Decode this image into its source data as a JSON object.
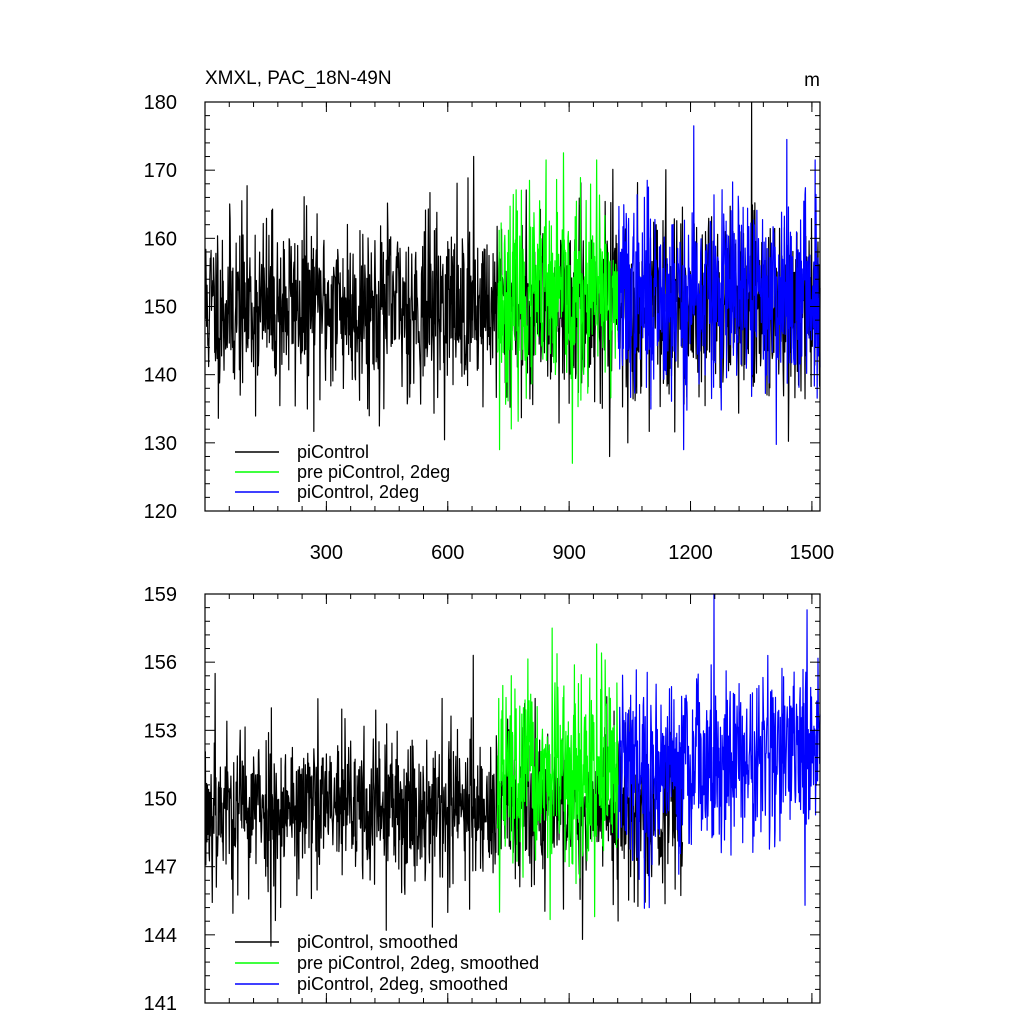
{
  "chart_data": [
    {
      "type": "line",
      "title": "XMXL, PAC_18N-49N",
      "units": "m",
      "xlabel": "",
      "ylabel": "",
      "xlim": [
        0,
        1520
      ],
      "ylim": [
        120,
        180
      ],
      "x_ticks": [
        300,
        600,
        900,
        1200,
        1500
      ],
      "y_ticks": [
        120,
        130,
        140,
        150,
        160,
        170,
        180
      ],
      "grid": false,
      "legend_position": "bottom-left",
      "series": [
        {
          "name": "piControl",
          "color": "#000000",
          "x_start": 1,
          "x_end": 1520,
          "mean": 150,
          "noise": 6.5,
          "trend": 0,
          "seed": 11,
          "extremes": [
            [
              664,
              172
            ],
            [
              1045,
              130
            ],
            [
              1000,
              128
            ]
          ]
        },
        {
          "name": "pre piControl, 2deg",
          "color": "#00ff00",
          "x_start": 723,
          "x_end": 1022,
          "mean": 151,
          "noise": 7.0,
          "trend": 0,
          "seed": 23,
          "extremes": [
            [
              908,
              127
            ],
            [
              728,
              129
            ],
            [
              843,
              171.5
            ],
            [
              968,
              171.5
            ]
          ]
        },
        {
          "name": "piControl, 2deg",
          "color": "#0000ff",
          "x_start": 1022,
          "x_end": 1520,
          "mean": 151.5,
          "noise": 7.0,
          "trend": 0,
          "seed": 37,
          "extremes": [
            [
              1208,
              176.5
            ],
            [
              1438,
              174.5
            ],
            [
              1508,
              171.5
            ],
            [
              1183,
              129
            ]
          ]
        }
      ]
    },
    {
      "type": "line",
      "title": "",
      "xlabel": "",
      "ylabel": "",
      "xlim": [
        0,
        1520
      ],
      "ylim": [
        141,
        159
      ],
      "x_ticks": [
        300,
        600,
        900,
        1200,
        1500
      ],
      "y_ticks": [
        141,
        144,
        147,
        150,
        153,
        156,
        159
      ],
      "grid": false,
      "legend_position": "bottom-left",
      "series": [
        {
          "name": "piControl, smoothed",
          "color": "#000000",
          "x_start": 1,
          "x_end": 1180,
          "mean": 149.6,
          "noise": 1.75,
          "trend": 0,
          "seed": 53,
          "extremes": [
            [
              25,
              155.5
            ],
            [
              663,
              156.3
            ],
            [
              163,
              143.5
            ],
            [
              448,
              144.2
            ],
            [
              933,
              143.8
            ]
          ]
        },
        {
          "name": "pre piControl, 2deg, smoothed",
          "color": "#00ff00",
          "x_start": 723,
          "x_end": 1022,
          "mean": 150.8,
          "noise": 2.1,
          "trend": 0,
          "seed": 67,
          "extremes": [
            [
              858,
              157.5
            ],
            [
              968,
              156.8
            ],
            [
              728,
              145
            ],
            [
              963,
              144.8
            ]
          ]
        },
        {
          "name": "piControl, 2deg, smoothed",
          "color": "#0000ff",
          "x_start": 1022,
          "x_end": 1520,
          "mean": 151.3,
          "noise": 2.0,
          "trend": 0.0015,
          "seed": 79,
          "extremes": [
            [
              1258,
              159
            ],
            [
              1488,
              158.3
            ],
            [
              1098,
              145.2
            ],
            [
              1483,
              145.3
            ]
          ]
        }
      ]
    }
  ]
}
